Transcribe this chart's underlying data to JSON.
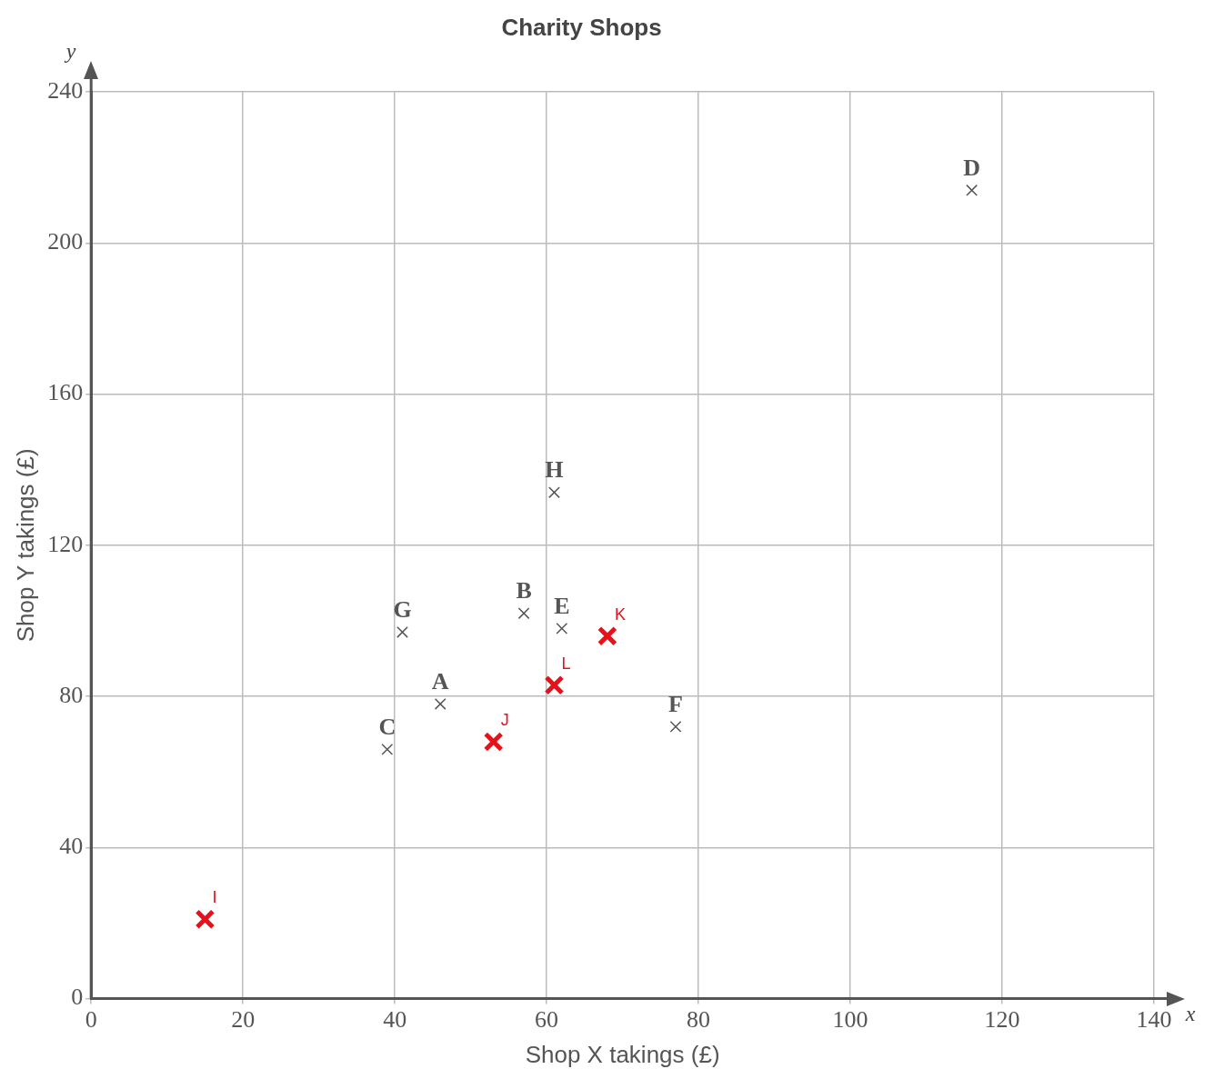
{
  "chart_data": {
    "type": "scatter",
    "title": "Charity Shops",
    "xlabel": "Shop X takings (£)",
    "ylabel": "Shop Y takings (£)",
    "series": [
      {
        "color": "#555555",
        "x": [
          46,
          57,
          39,
          116,
          62,
          77,
          41,
          61
        ],
        "values": [
          78,
          102,
          66,
          214,
          98,
          72,
          97,
          134
        ]
      },
      {
        "color": "#e8101a",
        "x": [
          15,
          53,
          68,
          61
        ],
        "values": [
          21,
          68,
          96,
          83
        ]
      }
    ],
    "xlim": [
      0,
      140
    ],
    "xticks": [
      0,
      20,
      40,
      60,
      80,
      100,
      120,
      140
    ],
    "ylim": [
      0,
      240
    ],
    "yticks": [
      0,
      40,
      80,
      120,
      160,
      200,
      240
    ],
    "grid": true,
    "marker": "cross",
    "annotations": [
      "x",
      "y",
      {
        "text": "A",
        "x": 46,
        "y": 78
      },
      {
        "text": "B",
        "x": 57,
        "y": 102
      },
      {
        "text": "C",
        "x": 39,
        "y": 66
      },
      {
        "text": "D",
        "x": 116,
        "y": 214
      },
      {
        "text": "E",
        "x": 62,
        "y": 98
      },
      {
        "text": "F",
        "x": 77,
        "y": 72
      },
      {
        "text": "G",
        "x": 41,
        "y": 97
      },
      {
        "text": "H",
        "x": 61,
        "y": 134
      },
      {
        "text": "I",
        "x": 15,
        "y": 21
      },
      {
        "text": "J",
        "x": 53,
        "y": 68
      },
      {
        "text": "K",
        "x": 68,
        "y": 96
      },
      {
        "text": "L",
        "x": 61,
        "y": 83
      }
    ]
  }
}
